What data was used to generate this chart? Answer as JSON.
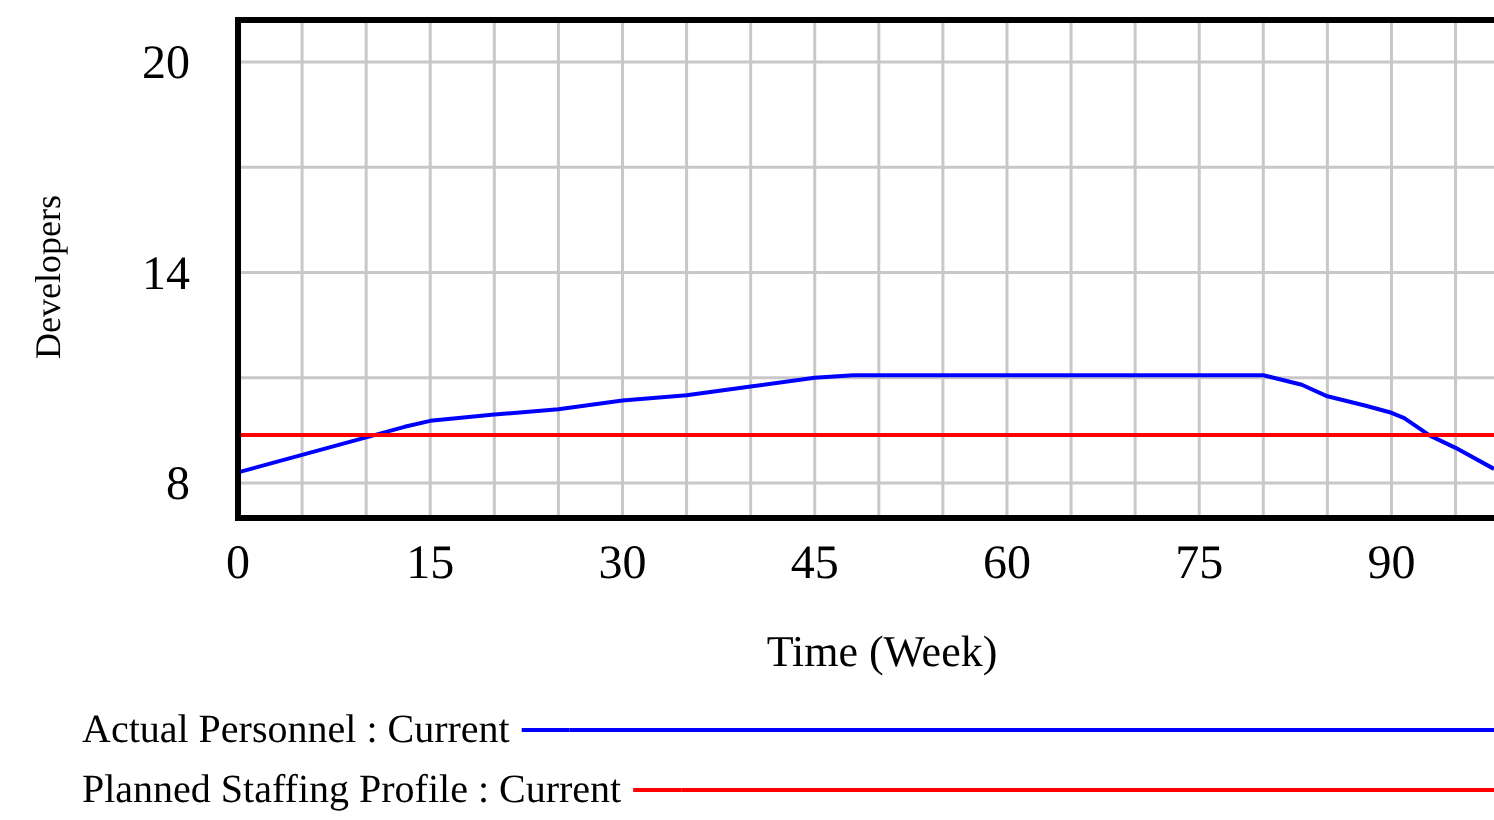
{
  "chart_data": {
    "type": "line",
    "xlabel": "Time (Week)",
    "ylabel": "Developers",
    "x": [
      0,
      3,
      6,
      10,
      13,
      15,
      20,
      25,
      30,
      35,
      40,
      45,
      48,
      55,
      65,
      75,
      80,
      83,
      85,
      88,
      90,
      91,
      93,
      95,
      98
    ],
    "series": [
      {
        "name": "Actual Personnel : Current",
        "color": "#0000ff",
        "values": [
          8.3,
          8.6,
          8.9,
          9.3,
          9.6,
          9.77,
          9.95,
          10.1,
          10.35,
          10.5,
          10.75,
          11,
          11.07,
          11.07,
          11.07,
          11.07,
          11.07,
          10.8,
          10.47,
          10.2,
          10,
          9.85,
          9.35,
          9,
          8.4
        ]
      },
      {
        "name": "Planned Staffing Profile : Current",
        "color": "#ff0000",
        "values": [
          9.37,
          9.37,
          9.37,
          9.37,
          9.37,
          9.37,
          9.37,
          9.37,
          9.37,
          9.37,
          9.37,
          9.37,
          9.37,
          9.37,
          9.37,
          9.37,
          9.37,
          9.37,
          9.37,
          9.37,
          9.37,
          9.37,
          9.37,
          9.37,
          9.37
        ]
      }
    ],
    "xlim": [
      0,
      98
    ],
    "ylim": [
      7,
      21.2
    ],
    "xticks": [
      0,
      {
        "value": 5,
        "label": null
      },
      {
        "value": 10,
        "label": null
      },
      15,
      {
        "value": 20,
        "label": null
      },
      {
        "value": 25,
        "label": null
      },
      30,
      {
        "value": 35,
        "label": null
      },
      {
        "value": 40,
        "label": null
      },
      45,
      {
        "value": 50,
        "label": null
      },
      {
        "value": 55,
        "label": null
      },
      60,
      {
        "value": 65,
        "label": null
      },
      {
        "value": 70,
        "label": null
      },
      75,
      {
        "value": 80,
        "label": null
      },
      {
        "value": 85,
        "label": null
      },
      90,
      {
        "value": 95,
        "label": null
      }
    ],
    "yticks": [
      8,
      {
        "value": 11,
        "label": null
      },
      14,
      {
        "value": 17,
        "label": null
      },
      20
    ],
    "grid": true,
    "legend": "bottom",
    "line_style": "solid",
    "marker": "none"
  }
}
